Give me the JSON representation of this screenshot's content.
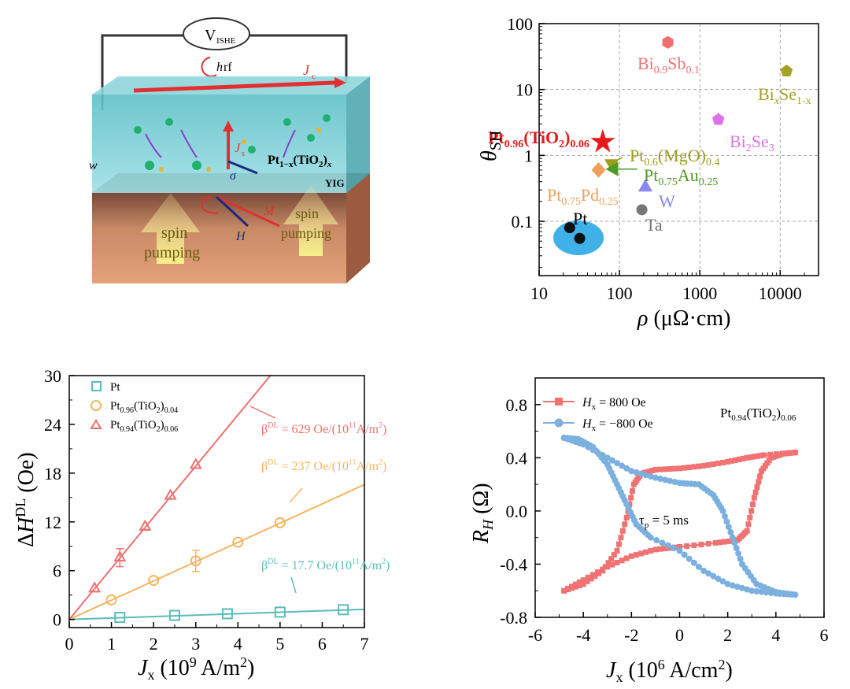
{
  "schematic": {
    "voltmeter_label": "V",
    "voltmeter_sub": "ISHE",
    "hrf_h": "h",
    "hrf_rf": "rf",
    "jc_j": "J",
    "jc_sub": "c",
    "js_j": "J",
    "js_sub": "s",
    "sigma": "σ",
    "w": "w",
    "layer_pt": "Pt",
    "layer_pt_sub1": "1−x",
    "layer_pt_mid": "(TiO",
    "layer_pt_sub2": "2",
    "layer_pt_end": ")",
    "layer_pt_subx": "x",
    "yig": "YIG",
    "m": "M",
    "h": "H",
    "spin_left_1": "spin",
    "spin_left_2": "pumping",
    "spin_right_1": "spin",
    "spin_right_2": "pumping"
  },
  "chart_data": [
    {
      "type": "scatter",
      "panel": "top-right",
      "xlabel": "ρ (μΩ·cm)",
      "ylabel": "θSH",
      "xscale": "log",
      "yscale": "log",
      "xlim": [
        10,
        30000
      ],
      "ylim": [
        0.015,
        100
      ],
      "xticks": [
        "10",
        "100",
        "1000",
        "10000"
      ],
      "yticks": [
        "0.1",
        "1",
        "10",
        "100"
      ],
      "grid": true,
      "points": [
        {
          "label": "Pt0.96(TiO2)0.06",
          "x": 62,
          "y": 1.6,
          "color": "#e8191b",
          "marker": "star"
        },
        {
          "label": "Bi0.9Sb0.1",
          "x": 400,
          "y": 52,
          "color": "#f07070",
          "marker": "hexagon"
        },
        {
          "label": "BixSe1-x",
          "x": 12000,
          "y": 19,
          "color": "#a6a224",
          "marker": "pentagon"
        },
        {
          "label": "Bi2Se3",
          "x": 1700,
          "y": 3.5,
          "color": "#e070e8",
          "marker": "pentagon"
        },
        {
          "label": "Pt0.6(MgO)0.4",
          "x": 80,
          "y": 0.75,
          "color": "#9a9e18",
          "marker": "triangle-down"
        },
        {
          "label": "Pt0.75Au0.25",
          "x": 85,
          "y": 0.62,
          "color": "#4e9a26",
          "marker": "triangle-left"
        },
        {
          "label": "Pt0.75Pd0.25",
          "x": 55,
          "y": 0.6,
          "color": "#f0a05a",
          "marker": "diamond"
        },
        {
          "label": "W",
          "x": 210,
          "y": 0.33,
          "color": "#8888ee",
          "marker": "triangle"
        },
        {
          "label": "Ta",
          "x": 190,
          "y": 0.15,
          "color": "#777777",
          "marker": "circle"
        },
        {
          "label": "Pt",
          "x": 24,
          "y": 0.08,
          "color": "#111111",
          "marker": "circle"
        },
        {
          "label": "Pt",
          "x": 32,
          "y": 0.055,
          "color": "#111111",
          "marker": "circle"
        }
      ],
      "labels": {
        "pt_tio2_main": "Pt",
        "pt_tio2_s1": "0.96",
        "pt_tio2_mid": "(TiO",
        "pt_tio2_s2": "2",
        "pt_tio2_end": ")",
        "pt_tio2_s3": "0.06",
        "bisb_main": "Bi",
        "bisb_s1": "0.9",
        "bisb_mid": "Sb",
        "bisb_s2": "0.1",
        "bise_main": "Bi",
        "bise_s1": "x",
        "bise_mid": "Se",
        "bise_s2": "1-x",
        "bi2se3_main": "Bi",
        "bi2se3_s1": "2",
        "bi2se3_mid": "Se",
        "bi2se3_s2": "3",
        "ptmgo_main": "Pt",
        "ptmgo_s1": "0.6",
        "ptmgo_mid": "(MgO)",
        "ptmgo_s2": "0.4",
        "ptau_main": "Pt",
        "ptau_s1": "0.75",
        "ptau_mid": "Au",
        "ptau_s2": "0.25",
        "ptpd_main": "Pt",
        "ptpd_s1": "0.75",
        "ptpd_mid": "Pd",
        "ptpd_s2": "0.25",
        "w": "W",
        "ta": "Ta",
        "pt": "Pt",
        "ylabel_main": "θ",
        "ylabel_sub": "SH",
        "xlabel_rho": "ρ",
        "xlabel_unit": " (μΩ·cm)"
      }
    },
    {
      "type": "scatter",
      "panel": "bottom-left",
      "xlabel": "Jx (10^9 A/m^2)",
      "ylabel": "ΔH^DL (Oe)",
      "xlim": [
        0,
        7
      ],
      "ylim": [
        -1,
        30
      ],
      "xticks": [
        "0",
        "1",
        "2",
        "3",
        "4",
        "5",
        "6",
        "7"
      ],
      "yticks": [
        "0",
        "6",
        "12",
        "18",
        "24",
        "30"
      ],
      "series": [
        {
          "name": "Pt",
          "color": "#5bbcb8",
          "marker": "square",
          "x": [
            1.2,
            2.5,
            3.75,
            5.0,
            6.5
          ],
          "y": [
            0.25,
            0.5,
            0.7,
            0.9,
            1.2
          ],
          "fit_slope": 0.177
        },
        {
          "name": "Pt0.96(TiO2)0.04",
          "color": "#f5b560",
          "marker": "circle",
          "x": [
            1.0,
            2.0,
            3.0,
            4.0,
            5.0
          ],
          "y": [
            2.4,
            4.8,
            7.2,
            9.5,
            11.9
          ],
          "yerr": [
            0,
            0,
            1.3,
            0,
            0
          ],
          "fit_slope": 2.37
        },
        {
          "name": "Pt0.94(TiO2)0.06",
          "color": "#ee7070",
          "marker": "triangle",
          "x": [
            0.6,
            1.2,
            1.8,
            2.4,
            3.0
          ],
          "y": [
            3.8,
            7.6,
            11.4,
            15.2,
            19.0
          ],
          "yerr": [
            0,
            1.1,
            0,
            0,
            0
          ],
          "fit_slope": 6.29
        }
      ],
      "annotations": [
        "β^DL = 629 Oe/(10^11A/m^2)",
        "β^DL = 237 Oe/(10^11A/m^2)",
        "β^DL = 17.7 Oe/(10^11A/m^2)"
      ],
      "labels": {
        "leg1": "Pt",
        "leg2_main": "Pt",
        "leg2_s1": "0.96",
        "leg2_mid": "(TiO",
        "leg2_s2": "2",
        "leg2_end": ")",
        "leg2_s3": "0.04",
        "leg3_main": "Pt",
        "leg3_s1": "0.94",
        "leg3_mid": "(TiO",
        "leg3_s2": "2",
        "leg3_end": ")",
        "leg3_s3": "0.06",
        "beta": "β",
        "beta_sup": "DL",
        "ann1_a": " = 629 Oe/(10",
        "ann1_sup": "11",
        "ann1_b": "A/m",
        "ann1_sup2": "2",
        "ann1_c": ")",
        "ann2_a": " = 237 Oe/(10",
        "ann2_sup": "11",
        "ann2_b": "A/m",
        "ann2_sup2": "2",
        "ann2_c": ")",
        "ann3_a": " = 17.7 Oe/(10",
        "ann3_sup": "11",
        "ann3_b": "A/m",
        "ann3_sup2": "2",
        "ann3_c": ")",
        "ylabel_delta": "Δ",
        "ylabel_h": "H",
        "ylabel_sup": "DL",
        "ylabel_unit": " (Oe)",
        "xlabel_j": "J",
        "xlabel_sub": "x",
        "xlabel_a": " (10",
        "xlabel_sup": "9",
        "xlabel_b": " A/m",
        "xlabel_sup2": "2",
        "xlabel_c": ")"
      }
    },
    {
      "type": "line",
      "panel": "bottom-right",
      "xlabel": "Jx (10^6 A/cm^2)",
      "ylabel": "RH (Ω)",
      "xlim": [
        -6,
        6
      ],
      "ylim": [
        -0.8,
        1.0
      ],
      "xticks": [
        "-6",
        "-4",
        "-2",
        "0",
        "2",
        "4",
        "6"
      ],
      "yticks": [
        "-0.8",
        "-0.4",
        "0.0",
        "0.4",
        "0.8"
      ],
      "series": [
        {
          "name": "Hx = 800 Oe",
          "color": "#f07272",
          "marker": "square",
          "upper": [
            [
              -4.8,
              -0.6
            ],
            [
              -4,
              -0.55
            ],
            [
              -3.2,
              -0.45
            ],
            [
              -2.6,
              -0.3
            ],
            [
              -2.2,
              -0.05
            ],
            [
              -1.9,
              0.2
            ],
            [
              -1.6,
              0.28
            ],
            [
              -1,
              0.31
            ],
            [
              0,
              0.32
            ],
            [
              1,
              0.34
            ],
            [
              2,
              0.37
            ],
            [
              2.8,
              0.4
            ],
            [
              3.5,
              0.42
            ],
            [
              4.8,
              0.44
            ]
          ],
          "lower": [
            [
              4.8,
              0.44
            ],
            [
              4.3,
              0.43
            ],
            [
              3.8,
              0.4
            ],
            [
              3.4,
              0.3
            ],
            [
              3.1,
              0.1
            ],
            [
              2.8,
              -0.15
            ],
            [
              2.4,
              -0.22
            ],
            [
              1.5,
              -0.24
            ],
            [
              0,
              -0.27
            ],
            [
              -1,
              -0.29
            ],
            [
              -2,
              -0.34
            ],
            [
              -3,
              -0.42
            ],
            [
              -4,
              -0.52
            ],
            [
              -4.8,
              -0.6
            ]
          ]
        },
        {
          "name": "Hx = -800 Oe",
          "color": "#7bb0df",
          "marker": "circle",
          "upper": [
            [
              -4.8,
              0.55
            ],
            [
              -4,
              0.5
            ],
            [
              -3,
              0.4
            ],
            [
              -2,
              0.3
            ],
            [
              -1,
              0.25
            ],
            [
              0,
              0.21
            ],
            [
              0.8,
              0.2
            ],
            [
              1.4,
              0.12
            ],
            [
              1.8,
              0
            ],
            [
              2.2,
              -0.2
            ],
            [
              2.6,
              -0.4
            ],
            [
              3.2,
              -0.55
            ],
            [
              4,
              -0.61
            ],
            [
              4.8,
              -0.63
            ]
          ],
          "lower": [
            [
              4.8,
              -0.63
            ],
            [
              4,
              -0.62
            ],
            [
              3,
              -0.6
            ],
            [
              2,
              -0.55
            ],
            [
              1,
              -0.45
            ],
            [
              0,
              -0.3
            ],
            [
              -1.2,
              -0.2
            ],
            [
              -1.8,
              -0.1
            ],
            [
              -2.2,
              0.05
            ],
            [
              -2.6,
              0.2
            ],
            [
              -3,
              0.35
            ],
            [
              -3.6,
              0.48
            ],
            [
              -4.2,
              0.54
            ],
            [
              -4.8,
              0.55
            ]
          ]
        }
      ],
      "labels": {
        "leg1_h": "H",
        "leg1_sub": "x",
        "leg1_val": " = 800 Oe",
        "leg2_h": "H",
        "leg2_sub": "x",
        "leg2_val": " = −800 Oe",
        "sample_main": "Pt",
        "sample_s1": "0.94",
        "sample_mid": "(TiO",
        "sample_s2": "2",
        "sample_end": ")",
        "sample_s3": "0.06",
        "tau": "τ",
        "tau_sub": "p",
        "tau_val": " = 5 ms",
        "ylabel_r": "R",
        "ylabel_sub": "H",
        "ylabel_unit": " (Ω)",
        "xlabel_j": "J",
        "xlabel_sub": "x",
        "xlabel_a": " (10",
        "xlabel_sup": "6",
        "xlabel_b": " A/cm",
        "xlabel_sup2": "2",
        "xlabel_c": ")"
      }
    }
  ]
}
